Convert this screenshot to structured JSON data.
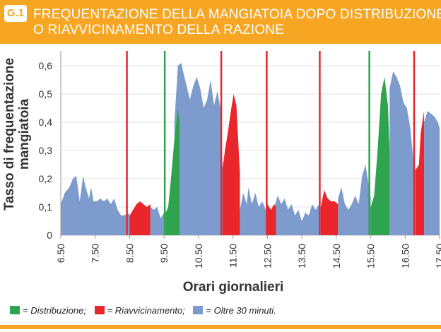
{
  "header": {
    "badge": "G.1",
    "title_line1": "FREQUENTAZIONE DELLA MANGIATOIA DOPO DISTRIBUZIONE",
    "title_line2": "O RIAVVICINAMENTO DELLA RAZIONE"
  },
  "colors": {
    "header": "#f6a623",
    "distribuzione": "#2ea44f",
    "riavvicinamento": "#e8262c",
    "oltre": "#7d9ccd"
  },
  "legend": {
    "distribuzione": "= Distribuzione;",
    "riavvicinamento": "= Riavvicinamento;",
    "oltre": "= Oltre 30 minuti."
  },
  "chart_data": {
    "type": "area",
    "xlabel": "Orari giornalieri",
    "ylabel": "Tasso di frequentazione mangiatoia",
    "ylim": [
      0,
      0.65
    ],
    "xlim": [
      6.5,
      17.5
    ],
    "xticks": [
      "6.50",
      "7.50",
      "8.50",
      "9.50",
      "10.50",
      "11.50",
      "12.50",
      "13.50",
      "14.50",
      "15.50",
      "16.50",
      "17.50"
    ],
    "yticks": [
      "0",
      "0,1",
      "0,2",
      "0,3",
      "0,4",
      "0,5",
      "0,6"
    ],
    "grid": true,
    "series": [
      {
        "name": "Oltre 30 minuti.",
        "segments": [
          {
            "x": [
              6.5,
              6.62,
              6.75,
              6.85,
              6.95,
              7.05,
              7.15,
              7.22,
              7.32,
              7.38,
              7.45,
              7.55,
              7.65,
              7.75,
              7.85,
              7.95,
              8.05,
              8.15,
              8.25,
              8.35,
              8.45,
              8.5
            ],
            "y": [
              0.11,
              0.15,
              0.17,
              0.2,
              0.21,
              0.12,
              0.21,
              0.17,
              0.13,
              0.17,
              0.12,
              0.12,
              0.13,
              0.12,
              0.13,
              0.11,
              0.13,
              0.09,
              0.07,
              0.07,
              0.08,
              0.07
            ]
          },
          {
            "x": [
              9.1,
              9.2,
              9.3,
              9.4,
              9.5,
              9.55
            ],
            "y": [
              0.1,
              0.09,
              0.1,
              0.06,
              0.08,
              0.09
            ]
          },
          {
            "x": [
              9.8,
              9.9,
              10.0,
              10.05,
              10.15,
              10.25,
              10.35,
              10.45,
              10.55,
              10.65,
              10.75,
              10.85,
              10.95,
              11.05,
              11.15,
              11.2
            ],
            "y": [
              0.4,
              0.6,
              0.61,
              0.58,
              0.53,
              0.48,
              0.53,
              0.56,
              0.52,
              0.45,
              0.48,
              0.55,
              0.46,
              0.51,
              0.44,
              0.23
            ]
          },
          {
            "x": [
              11.7,
              11.8,
              11.9,
              11.95,
              12.05,
              12.15,
              12.25,
              12.35,
              12.45,
              12.5
            ],
            "y": [
              0.09,
              0.15,
              0.11,
              0.17,
              0.11,
              0.15,
              0.1,
              0.12,
              0.09,
              0.1
            ]
          },
          {
            "x": [
              12.7,
              12.8,
              12.9,
              13.0,
              13.1,
              13.2,
              13.3,
              13.4,
              13.5,
              13.6,
              13.7,
              13.8,
              13.9,
              14.0,
              14.05
            ],
            "y": [
              0.1,
              0.14,
              0.11,
              0.13,
              0.09,
              0.11,
              0.07,
              0.09,
              0.05,
              0.08,
              0.07,
              0.11,
              0.09,
              0.11,
              0.1
            ]
          },
          {
            "x": [
              14.55,
              14.65,
              14.75,
              14.85,
              14.95,
              15.05,
              15.15,
              15.25,
              15.35,
              15.45,
              15.5
            ],
            "y": [
              0.13,
              0.17,
              0.11,
              0.09,
              0.11,
              0.14,
              0.11,
              0.21,
              0.25,
              0.17,
              0.13
            ]
          },
          {
            "x": [
              16.05,
              16.15,
              16.25,
              16.35,
              16.45,
              16.55,
              16.65,
              16.75,
              16.8
            ],
            "y": [
              0.52,
              0.58,
              0.56,
              0.53,
              0.47,
              0.45,
              0.38,
              0.25,
              0.23
            ]
          },
          {
            "x": [
              17.05,
              17.15,
              17.25,
              17.35,
              17.45,
              17.5
            ],
            "y": [
              0.4,
              0.44,
              0.43,
              0.42,
              0.4,
              0.38
            ]
          }
        ]
      },
      {
        "name": "Distribuzione",
        "segments": [
          {
            "x": [
              9.55,
              9.62,
              9.7,
              9.8,
              9.9,
              9.95
            ],
            "y": [
              0.08,
              0.1,
              0.2,
              0.34,
              0.45,
              0.4
            ]
          },
          {
            "x": [
              15.5,
              15.6,
              15.7,
              15.8,
              15.9,
              16.0,
              16.05
            ],
            "y": [
              0.1,
              0.14,
              0.3,
              0.5,
              0.56,
              0.46,
              0.3
            ]
          }
        ]
      },
      {
        "name": "Riavvicinamento",
        "segments": [
          {
            "x": [
              8.5,
              8.6,
              8.7,
              8.8,
              8.9,
              9.0,
              9.1
            ],
            "y": [
              0.07,
              0.09,
              0.11,
              0.12,
              0.11,
              0.1,
              0.11
            ]
          },
          {
            "x": [
              11.2,
              11.28,
              11.36,
              11.44,
              11.52,
              11.6,
              11.7
            ],
            "y": [
              0.24,
              0.31,
              0.37,
              0.44,
              0.5,
              0.46,
              0.22
            ]
          },
          {
            "x": [
              12.5,
              12.6,
              12.7,
              12.75
            ],
            "y": [
              0.11,
              0.09,
              0.11,
              0.1
            ]
          },
          {
            "x": [
              14.05,
              14.15,
              14.25,
              14.35,
              14.45,
              14.55
            ],
            "y": [
              0.1,
              0.16,
              0.13,
              0.12,
              0.12,
              0.11
            ]
          },
          {
            "x": [
              16.8,
              16.9,
              16.95,
              17.05
            ],
            "y": [
              0.23,
              0.25,
              0.36,
              0.44
            ]
          }
        ]
      }
    ],
    "markers": [
      {
        "x": 8.42,
        "type": "Riavvicinamento"
      },
      {
        "x": 9.52,
        "type": "Distribuzione"
      },
      {
        "x": 11.16,
        "type": "Riavvicinamento"
      },
      {
        "x": 12.48,
        "type": "Riavvicinamento"
      },
      {
        "x": 14.02,
        "type": "Riavvicinamento"
      },
      {
        "x": 15.46,
        "type": "Distribuzione"
      },
      {
        "x": 16.76,
        "type": "Riavvicinamento"
      }
    ]
  }
}
